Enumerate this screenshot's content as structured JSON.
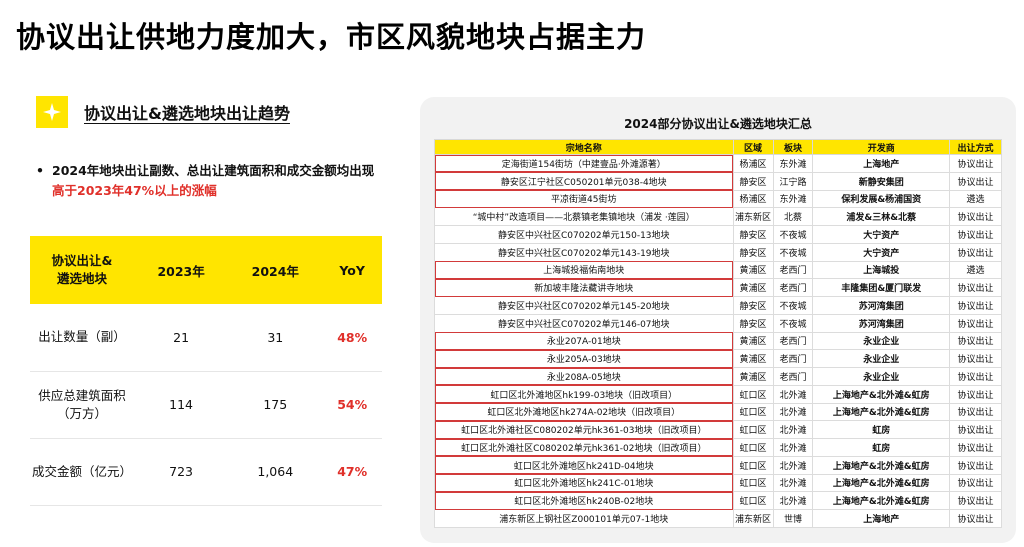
{
  "page_title": "协议出让供地力度加大，市区风貌地块占据主力",
  "section": {
    "icon": "sparkle-icon",
    "title": "协议出让&遴选地块出让趋势"
  },
  "bullet": {
    "text": "2024年地块出让副数、总出让建筑面积和成交金额均出现",
    "highlight": "高于2023年47%以上的涨幅"
  },
  "stats_table": {
    "headers": [
      "协议出让&\n遴选地块",
      "2023年",
      "2024年",
      "YoY"
    ],
    "rows": [
      {
        "label": "出让数量（副）",
        "y2023": "21",
        "y2024": "31",
        "yoy": "48%"
      },
      {
        "label": "供应总建筑面积\n（万方）",
        "y2023": "114",
        "y2024": "175",
        "yoy": "54%"
      },
      {
        "label": "成交金额（亿元）",
        "y2023": "723",
        "y2024": "1,064",
        "yoy": "47%"
      }
    ]
  },
  "plots_table": {
    "title": "2024部分协议出让&遴选地块汇总",
    "headers": [
      "宗地名称",
      "区域",
      "板块",
      "开发商",
      "出让方式"
    ],
    "rows": [
      {
        "name": "定海街道154街坊（中建壹品·外滩源著）",
        "district": "杨浦区",
        "block": "东外滩",
        "developer": "上海地产",
        "method": "协议出让",
        "boxed": true
      },
      {
        "name": "静安区江宁社区C050201单元038-4地块",
        "district": "静安区",
        "block": "江宁路",
        "developer": "新静安集团",
        "method": "协议出让",
        "boxed": true
      },
      {
        "name": "平凉街道45街坊",
        "district": "杨浦区",
        "block": "东外滩",
        "developer": "保利发展&杨浦国资",
        "method": "遴选",
        "boxed": true
      },
      {
        "name": "“城中村”改造项目——北蔡镇老集镇地块（浦发 ·莲园）",
        "district": "浦东新区",
        "block": "北蔡",
        "developer": "浦发&三林&北蔡",
        "method": "协议出让",
        "boxed": false
      },
      {
        "name": "静安区中兴社区C070202单元150-13地块",
        "district": "静安区",
        "block": "不夜城",
        "developer": "大宁资产",
        "method": "协议出让",
        "boxed": false
      },
      {
        "name": "静安区中兴社区C070202单元143-19地块",
        "district": "静安区",
        "block": "不夜城",
        "developer": "大宁资产",
        "method": "协议出让",
        "boxed": false
      },
      {
        "name": "上海城投福佑南地块",
        "district": "黄浦区",
        "block": "老西门",
        "developer": "上海城投",
        "method": "遴选",
        "boxed": true
      },
      {
        "name": "新加坡丰隆法藏讲寺地块",
        "district": "黄浦区",
        "block": "老西门",
        "developer": "丰隆集团&厦门联发",
        "method": "协议出让",
        "boxed": true
      },
      {
        "name": "静安区中兴社区C070202单元145-20地块",
        "district": "静安区",
        "block": "不夜城",
        "developer": "苏河湾集团",
        "method": "协议出让",
        "boxed": false
      },
      {
        "name": "静安区中兴社区C070202单元146-07地块",
        "district": "静安区",
        "block": "不夜城",
        "developer": "苏河湾集团",
        "method": "协议出让",
        "boxed": false
      },
      {
        "name": "永业207A-01地块",
        "district": "黄浦区",
        "block": "老西门",
        "developer": "永业企业",
        "method": "协议出让",
        "boxed": true
      },
      {
        "name": "永业205A-03地块",
        "district": "黄浦区",
        "block": "老西门",
        "developer": "永业企业",
        "method": "协议出让",
        "boxed": true
      },
      {
        "name": "永业208A-05地块",
        "district": "黄浦区",
        "block": "老西门",
        "developer": "永业企业",
        "method": "协议出让",
        "boxed": true
      },
      {
        "name": "虹口区北外滩地区hk199-03地块（旧改项目）",
        "district": "虹口区",
        "block": "北外滩",
        "developer": "上海地产&北外滩&虹房",
        "method": "协议出让",
        "boxed": true
      },
      {
        "name": "虹口区北外滩地区hk274A-02地块（旧改项目）",
        "district": "虹口区",
        "block": "北外滩",
        "developer": "上海地产&北外滩&虹房",
        "method": "协议出让",
        "boxed": true
      },
      {
        "name": "虹口区北外滩社区C080202单元hk361-03地块（旧改项目）",
        "district": "虹口区",
        "block": "北外滩",
        "developer": "虹房",
        "method": "协议出让",
        "boxed": true
      },
      {
        "name": "虹口区北外滩社区C080202单元hk361-02地块（旧改项目）",
        "district": "虹口区",
        "block": "北外滩",
        "developer": "虹房",
        "method": "协议出让",
        "boxed": true
      },
      {
        "name": "虹口区北外滩地区hk241D-04地块",
        "district": "虹口区",
        "block": "北外滩",
        "developer": "上海地产&北外滩&虹房",
        "method": "协议出让",
        "boxed": true
      },
      {
        "name": "虹口区北外滩地区hk241C-01地块",
        "district": "虹口区",
        "block": "北外滩",
        "developer": "上海地产&北外滩&虹房",
        "method": "协议出让",
        "boxed": true
      },
      {
        "name": "虹口区北外滩地区hk240B-02地块",
        "district": "虹口区",
        "block": "北外滩",
        "developer": "上海地产&北外滩&虹房",
        "method": "协议出让",
        "boxed": true
      },
      {
        "name": "浦东新区上钢社区Z000101单元07-1地块",
        "district": "浦东新区",
        "block": "世博",
        "developer": "上海地产",
        "method": "协议出让",
        "boxed": false
      }
    ]
  },
  "colors": {
    "accent": "#ffe500",
    "highlight": "#e0302a",
    "box": "#d23a3a",
    "panel": "#f2f2f2"
  }
}
